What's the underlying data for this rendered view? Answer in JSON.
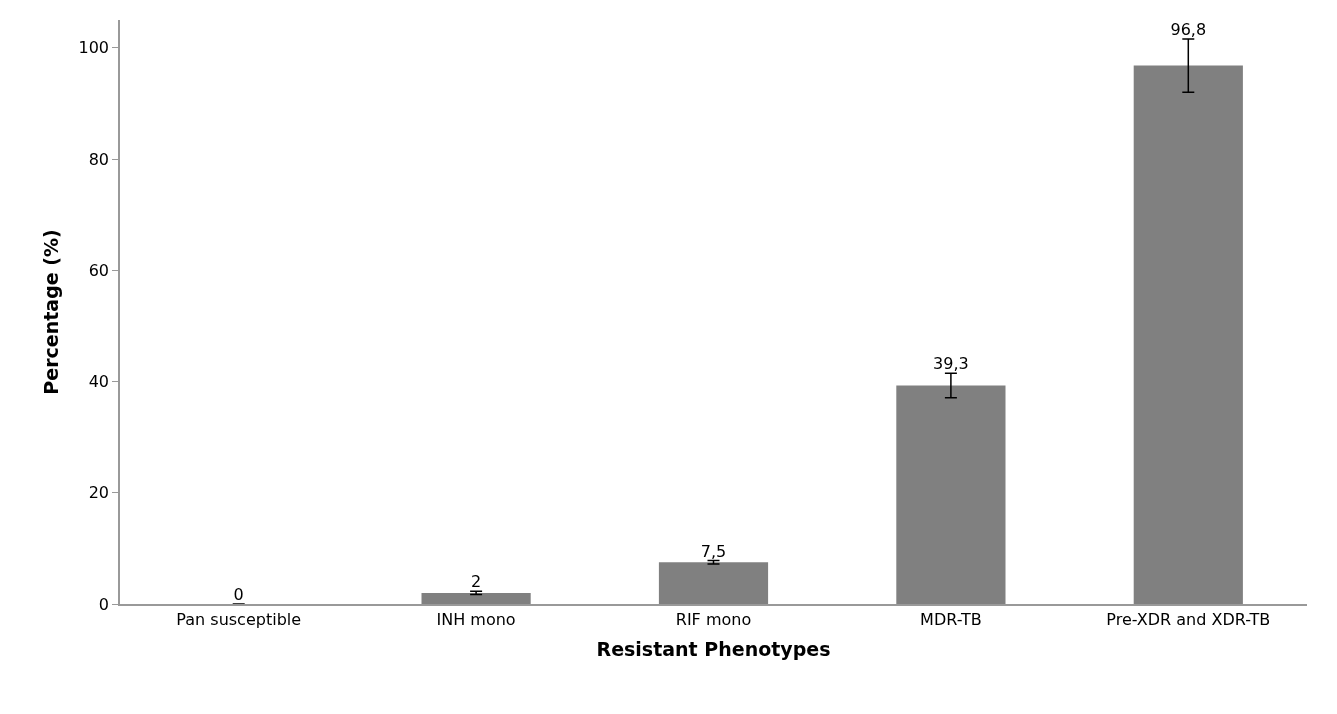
{
  "chart_data": {
    "type": "bar",
    "xlabel": "Resistant Phenotypes",
    "ylabel": "Percentage (%)",
    "categories": [
      "Pan susceptible",
      "INH mono",
      "RIF mono",
      "MDR-TB",
      "Pre-XDR and XDR-TB"
    ],
    "values": [
      0,
      2,
      7.5,
      39.3,
      96.8
    ],
    "value_labels": [
      "0",
      "2",
      "7,5",
      "39,3",
      "96,8"
    ],
    "errors": [
      null,
      0.3,
      0.3,
      2.2,
      4.8
    ],
    "color": "#808080",
    "ylim": [
      0,
      105
    ],
    "yticks": [
      0,
      20,
      40,
      60,
      80,
      100
    ],
    "legend": false
  }
}
